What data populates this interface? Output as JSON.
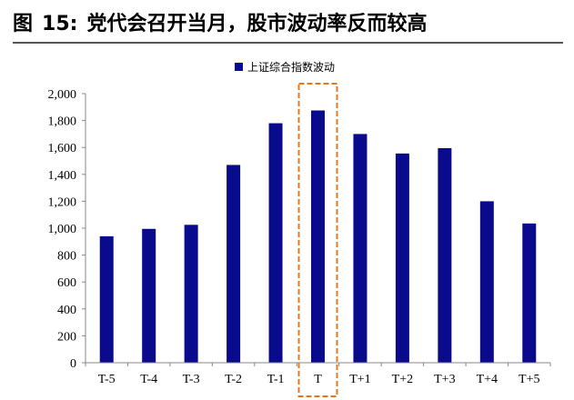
{
  "figure": {
    "label": "图",
    "number": "15:",
    "title": "党代会召开当月，股市波动率反而较高"
  },
  "chart_data": {
    "type": "bar",
    "title": "党代会召开当月，股市波动率反而较高",
    "xlabel": "",
    "ylabel": "",
    "categories": [
      "T-5",
      "T-4",
      "T-3",
      "T-2",
      "T-1",
      "T",
      "T+1",
      "T+2",
      "T+3",
      "T+4",
      "T+5"
    ],
    "series": [
      {
        "name": "上证综合指数波动",
        "values": [
          940,
          995,
          1025,
          1470,
          1780,
          1875,
          1700,
          1555,
          1595,
          1200,
          1035
        ]
      }
    ],
    "y_ticks": [
      "0",
      "200",
      "400",
      "600",
      "800",
      "1,000",
      "1,200",
      "1,400",
      "1,600",
      "1,800",
      "2,000"
    ],
    "ylim": [
      0,
      2000
    ],
    "grid": false,
    "legend_position": "top",
    "highlight_category": "T",
    "colors": {
      "bar": "#0a0a8c",
      "highlight_border": "#e8771c",
      "axis": "#888888"
    }
  }
}
